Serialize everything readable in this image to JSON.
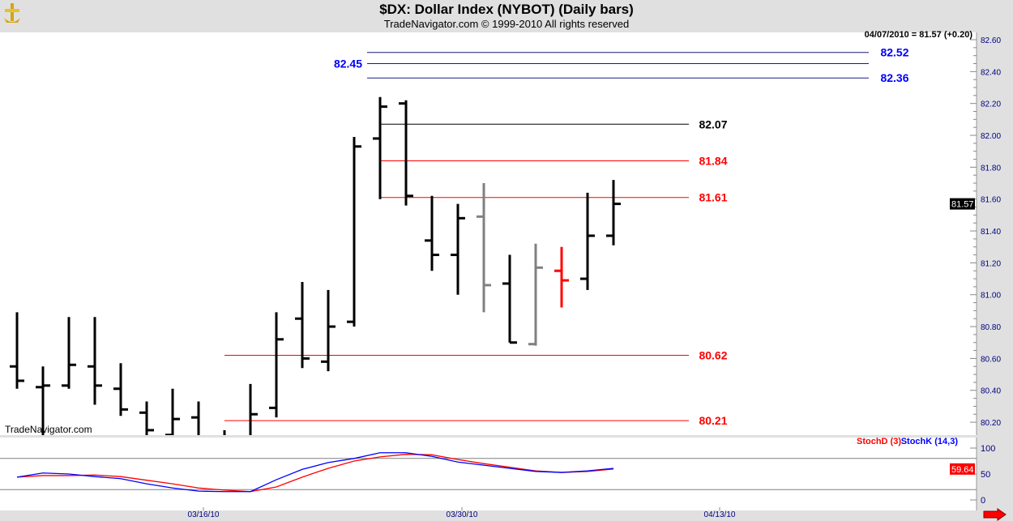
{
  "header": {
    "title": "$DX:  Dollar Index (NYBOT)  (Daily bars)",
    "subtitle": "TradeNavigator.com © 1999-2010 All rights reserved"
  },
  "watermark": "TradeNavigator.com",
  "last_quote": "04/07/2010 = 81.57 (+0.20)",
  "colors": {
    "up": "#000000",
    "inside": "#808080",
    "down_red": "#ff0000",
    "level_red": "#ff0000",
    "level_blue": "#0000ff",
    "stochD": "#ff0000",
    "stochK": "#0000ff"
  },
  "chart_data": [
    {
      "type": "ohlc",
      "ylim": [
        80.18,
        82.66
      ],
      "yticks": [
        "82.60",
        "82.40",
        "82.20",
        "82.00",
        "81.80",
        "81.60",
        "81.40",
        "81.20",
        "81.00",
        "80.80",
        "80.60",
        "80.40",
        "80.20"
      ],
      "xticks": [
        "03/16/10",
        "03/30/10",
        "04/13/10"
      ],
      "last_price_label": "81.57",
      "bars": [
        {
          "o": 80.55,
          "h": 80.89,
          "l": 80.41,
          "c": 80.46,
          "color": "#000000"
        },
        {
          "o": 80.42,
          "h": 80.55,
          "l": 80.05,
          "c": 80.43,
          "color": "#000000"
        },
        {
          "o": 80.43,
          "h": 80.86,
          "l": 80.41,
          "c": 80.56,
          "color": "#000000"
        },
        {
          "o": 80.55,
          "h": 80.86,
          "l": 80.31,
          "c": 80.43,
          "color": "#000000"
        },
        {
          "o": 80.41,
          "h": 80.57,
          "l": 80.24,
          "c": 80.28,
          "color": "#000000"
        },
        {
          "o": 80.26,
          "h": 80.33,
          "l": 80.05,
          "c": 80.15,
          "color": "#000000"
        },
        {
          "o": 80.12,
          "h": 80.41,
          "l": 80.05,
          "c": 80.22,
          "color": "#000000"
        },
        {
          "o": 80.23,
          "h": 80.33,
          "l": 80.05,
          "c": 80.1,
          "color": "#000000"
        },
        {
          "o": 80.0,
          "h": 80.15,
          "l": 79.9,
          "c": 80.1,
          "color": "#000000"
        },
        {
          "o": 80.1,
          "h": 80.44,
          "l": 80.05,
          "c": 80.25,
          "color": "#000000"
        },
        {
          "o": 80.29,
          "h": 80.89,
          "l": 80.23,
          "c": 80.72,
          "color": "#000000"
        },
        {
          "o": 80.85,
          "h": 81.08,
          "l": 80.54,
          "c": 80.6,
          "color": "#000000"
        },
        {
          "o": 80.58,
          "h": 81.03,
          "l": 80.52,
          "c": 80.8,
          "color": "#000000"
        },
        {
          "o": 80.83,
          "h": 81.99,
          "l": 80.8,
          "c": 81.93,
          "color": "#000000"
        },
        {
          "o": 81.98,
          "h": 82.24,
          "l": 81.6,
          "c": 82.18,
          "color": "#000000"
        },
        {
          "o": 82.2,
          "h": 82.22,
          "l": 81.56,
          "c": 81.62,
          "color": "#000000"
        },
        {
          "o": 81.34,
          "h": 81.62,
          "l": 81.15,
          "c": 81.25,
          "color": "#000000"
        },
        {
          "o": 81.25,
          "h": 81.57,
          "l": 81.0,
          "c": 81.48,
          "color": "#000000"
        },
        {
          "o": 81.49,
          "h": 81.7,
          "l": 80.89,
          "c": 81.06,
          "color": "#808080"
        },
        {
          "o": 81.07,
          "h": 81.25,
          "l": 80.7,
          "c": 80.7,
          "color": "#000000"
        },
        {
          "o": 80.69,
          "h": 81.32,
          "l": 80.68,
          "c": 81.17,
          "color": "#808080"
        },
        {
          "o": 81.15,
          "h": 81.3,
          "l": 80.92,
          "c": 81.09,
          "color": "#ff0000"
        },
        {
          "o": 81.1,
          "h": 81.64,
          "l": 81.03,
          "c": 81.37,
          "color": "#000000"
        },
        {
          "o": 81.37,
          "h": 81.72,
          "l": 81.31,
          "c": 81.57,
          "color": "#000000"
        }
      ],
      "levels": [
        {
          "value": 82.52,
          "label": "82.52",
          "color": "#0000ff",
          "line": "#1a1a80",
          "start_bar": 13.5
        },
        {
          "value": 82.45,
          "label": "82.45",
          "color": "#0000ff",
          "line": "#1a1a80",
          "start_bar": 13.5,
          "label_left": true
        },
        {
          "value": 82.36,
          "label": "82.36",
          "color": "#0000ff",
          "line": "#1a1a80",
          "start_bar": 13.5
        },
        {
          "value": 82.07,
          "label": "82.07",
          "color": "#000000",
          "line": "#000000",
          "start_bar": 14
        },
        {
          "value": 81.84,
          "label": "81.84",
          "color": "#ff0000",
          "line": "#ff0000",
          "start_bar": 14
        },
        {
          "value": 81.61,
          "label": "81.61",
          "color": "#ff0000",
          "line": "#ff0000",
          "start_bar": 14
        },
        {
          "value": 80.62,
          "label": "80.62",
          "color": "#ff0000",
          "line": "#ff0000",
          "start_bar": 8
        },
        {
          "value": 80.21,
          "label": "80.21",
          "color": "#ff0000",
          "line": "#ff0000",
          "start_bar": 8
        }
      ]
    },
    {
      "type": "line",
      "ylim": [
        0,
        100
      ],
      "yticks": [
        "100",
        "50",
        "0"
      ],
      "reference_lines": [
        80,
        20
      ],
      "last_value_label": "59.64",
      "series": [
        {
          "name": "StochD (3)",
          "color": "#ff0000",
          "values": [
            44,
            47,
            47,
            48,
            45,
            38,
            31,
            23,
            19,
            16,
            25,
            44,
            61,
            75,
            83,
            88,
            87,
            78,
            70,
            63,
            56,
            53,
            55,
            59.64
          ]
        },
        {
          "name": "StochK (14,3)",
          "color": "#0000ff",
          "values": [
            44,
            52,
            50,
            45,
            41,
            31,
            23,
            17,
            16,
            16,
            39,
            59,
            72,
            80,
            91,
            91,
            84,
            73,
            67,
            61,
            55,
            53,
            56,
            61
          ]
        }
      ]
    }
  ]
}
